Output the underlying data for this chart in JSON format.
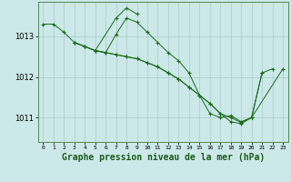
{
  "background_color": "#cce8e8",
  "grid_color": "#aacccc",
  "line_color": "#1a6b1a",
  "marker_color": "#1a6b1a",
  "xlabel": "Graphe pression niveau de la mer (hPa)",
  "xlabel_fontsize": 7,
  "ytick_labels": [
    "1011",
    "1012",
    "1013"
  ],
  "yticks": [
    1011,
    1012,
    1013
  ],
  "ylim": [
    1010.4,
    1013.85
  ],
  "xlim": [
    -0.5,
    23.5
  ],
  "xticks": [
    0,
    1,
    2,
    3,
    4,
    5,
    6,
    7,
    8,
    9,
    10,
    11,
    12,
    13,
    14,
    15,
    16,
    17,
    18,
    19,
    20,
    21,
    22,
    23
  ],
  "series": [
    {
      "x": [
        0,
        1,
        2,
        3,
        4,
        5,
        6,
        7,
        8,
        9,
        10,
        11,
        12,
        13,
        14,
        15,
        16,
        17,
        18,
        19,
        20,
        21,
        22
      ],
      "y": [
        1013.3,
        1013.3,
        1013.1,
        1012.85,
        1012.75,
        1012.65,
        1012.6,
        1013.05,
        1013.45,
        1013.35,
        1013.1,
        1012.85,
        1012.6,
        1012.4,
        1012.1,
        1011.55,
        1011.1,
        1011.0,
        1011.05,
        1010.9,
        1011.0,
        1012.1,
        1012.2
      ]
    },
    {
      "x": [
        3,
        4,
        5,
        7,
        8,
        9
      ],
      "y": [
        1012.85,
        1012.75,
        1012.65,
        1013.45,
        1013.7,
        1013.55
      ]
    },
    {
      "x": [
        3,
        4,
        5,
        6,
        7,
        8,
        9,
        10,
        11,
        12,
        13,
        14,
        15,
        16,
        17,
        18,
        19,
        20,
        21
      ],
      "y": [
        1012.85,
        1012.75,
        1012.65,
        1012.6,
        1012.55,
        1012.5,
        1012.45,
        1012.35,
        1012.25,
        1012.1,
        1011.95,
        1011.75,
        1011.55,
        1011.35,
        1011.1,
        1010.9,
        1010.85,
        1011.0,
        1012.1
      ]
    },
    {
      "x": [
        5,
        6,
        7,
        8,
        9,
        10,
        11,
        12,
        13,
        14,
        15,
        16,
        17,
        18,
        19,
        20,
        23
      ],
      "y": [
        1012.65,
        1012.6,
        1012.55,
        1012.5,
        1012.45,
        1012.35,
        1012.25,
        1012.1,
        1011.95,
        1011.75,
        1011.55,
        1011.35,
        1011.1,
        1011.0,
        1010.88,
        1011.0,
        1012.2
      ]
    }
  ]
}
